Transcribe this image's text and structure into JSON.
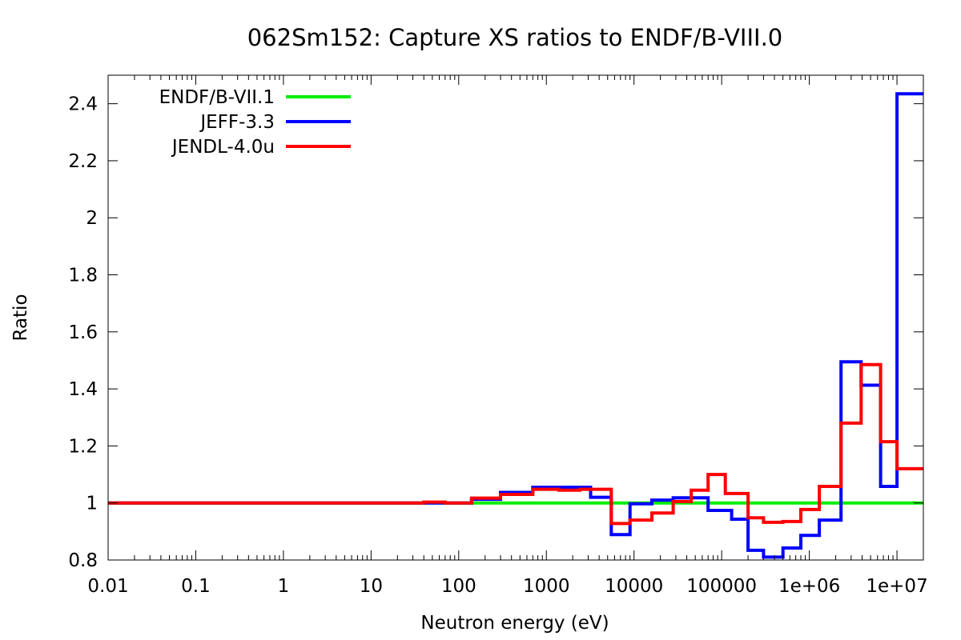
{
  "chart_data": {
    "type": "line",
    "step": true,
    "title": "062Sm152: Capture XS ratios to ENDF/B-VIII.0",
    "xlabel": "Neutron energy (eV)",
    "ylabel": "Ratio",
    "x_scale": "log",
    "xlim": [
      0.01,
      20000000
    ],
    "ylim": [
      0.8,
      2.5
    ],
    "x_ticks": [
      {
        "value": 0.01,
        "label": "0.01"
      },
      {
        "value": 0.1,
        "label": "0.1"
      },
      {
        "value": 1,
        "label": "1"
      },
      {
        "value": 10,
        "label": "10"
      },
      {
        "value": 100,
        "label": "100"
      },
      {
        "value": 1000,
        "label": "1000"
      },
      {
        "value": 10000,
        "label": "10000"
      },
      {
        "value": 100000,
        "label": "100000"
      },
      {
        "value": 1000000,
        "label": "1e+06"
      },
      {
        "value": 10000000,
        "label": "1e+07"
      }
    ],
    "y_ticks": [
      {
        "value": 0.8,
        "label": "0.8"
      },
      {
        "value": 1.0,
        "label": "1"
      },
      {
        "value": 1.2,
        "label": "1.2"
      },
      {
        "value": 1.4,
        "label": "1.4"
      },
      {
        "value": 1.6,
        "label": "1.6"
      },
      {
        "value": 1.8,
        "label": "1.8"
      },
      {
        "value": 2.0,
        "label": "2"
      },
      {
        "value": 2.2,
        "label": "2.2"
      },
      {
        "value": 2.4,
        "label": "2.4"
      }
    ],
    "grid": false,
    "legend_position": "top-left",
    "series": [
      {
        "name": "ENDF/B-VII.1",
        "color": "#00ee00",
        "edges": [
          0.01,
          20000000
        ],
        "values": [
          1.0
        ]
      },
      {
        "name": "JEFF-3.3",
        "color": "#0000ff",
        "edges": [
          0.01,
          40,
          140,
          300,
          700,
          1400,
          3200,
          5500,
          9000,
          16000,
          28000,
          70000,
          130000,
          200000,
          300000,
          500000,
          800000,
          1300000,
          2300000,
          3900000,
          6500000,
          10000000,
          20000000
        ],
        "values": [
          1.0,
          1.0,
          1.013,
          1.037,
          1.055,
          1.055,
          1.02,
          0.889,
          0.997,
          1.01,
          1.018,
          0.974,
          0.943,
          0.834,
          0.81,
          0.842,
          0.886,
          0.94,
          1.495,
          1.413,
          1.058,
          2.435
        ]
      },
      {
        "name": "JENDL-4.0u",
        "color": "#ff0000",
        "edges": [
          0.01,
          40,
          70,
          140,
          300,
          700,
          1400,
          2400,
          5500,
          9000,
          16000,
          28000,
          45000,
          70000,
          110000,
          200000,
          300000,
          500000,
          800000,
          1300000,
          2300000,
          3900000,
          6500000,
          10000000,
          20000000
        ],
        "values": [
          1.0,
          1.003,
          1.0,
          1.017,
          1.03,
          1.048,
          1.045,
          1.048,
          0.928,
          0.94,
          0.965,
          1.005,
          1.045,
          1.1,
          1.033,
          0.948,
          0.932,
          0.935,
          0.977,
          1.058,
          1.28,
          1.485,
          1.215,
          1.12
        ]
      }
    ]
  }
}
